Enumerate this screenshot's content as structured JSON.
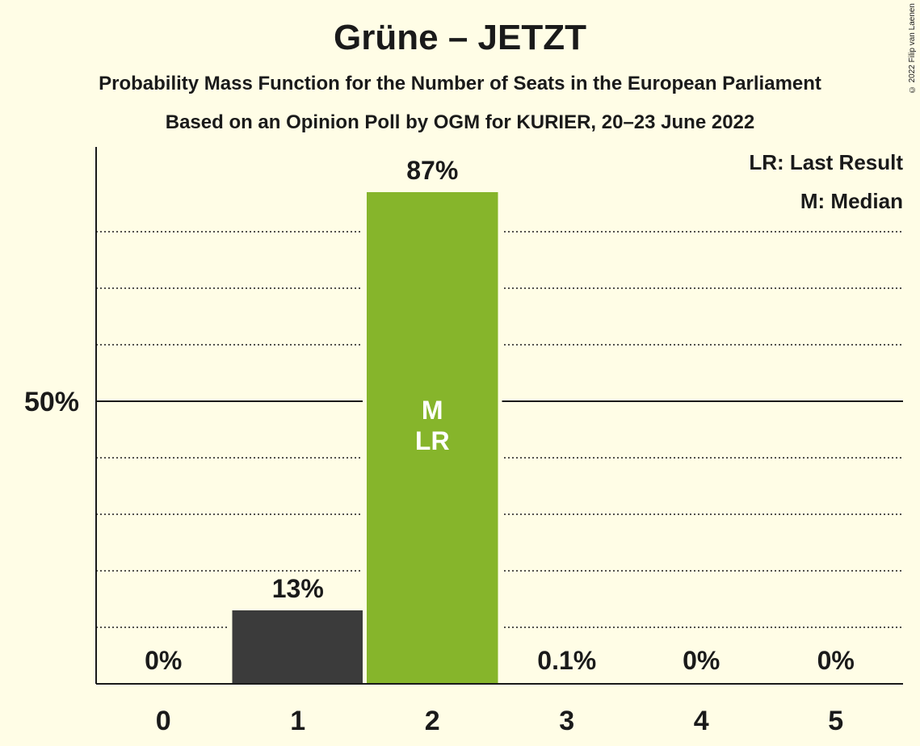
{
  "title": "Grüne – JETZT",
  "subtitle_1": "Probability Mass Function for the Number of Seats in the European Parliament",
  "subtitle_2": "Based on an Opinion Poll by OGM for KURIER, 20–23 June 2022",
  "copyright": "© 2022 Filip van Laenen",
  "legend": {
    "last_result": "LR: Last Result",
    "median": "M: Median"
  },
  "colors": {
    "background": "#fffde6",
    "highlight_bar": "#86b52b",
    "other_bar": "#3b3b3b",
    "axis": "#1a1a1a"
  },
  "chart_data": {
    "type": "bar",
    "categories": [
      "0",
      "1",
      "2",
      "3",
      "4",
      "5"
    ],
    "values": [
      0,
      13,
      87,
      0.1,
      0,
      0
    ],
    "value_labels": [
      "0%",
      "13%",
      "87%",
      "0.1%",
      "0%",
      "0%"
    ],
    "ylim": [
      0,
      95
    ],
    "y_tick_label": "50%",
    "y_tick_value": 50,
    "minor_gridlines": [
      10,
      20,
      30,
      40,
      60,
      70,
      80
    ],
    "highlight_index": 2,
    "bar_markers": [
      "M",
      "LR"
    ],
    "grid": true,
    "legend_position": "top-right"
  }
}
